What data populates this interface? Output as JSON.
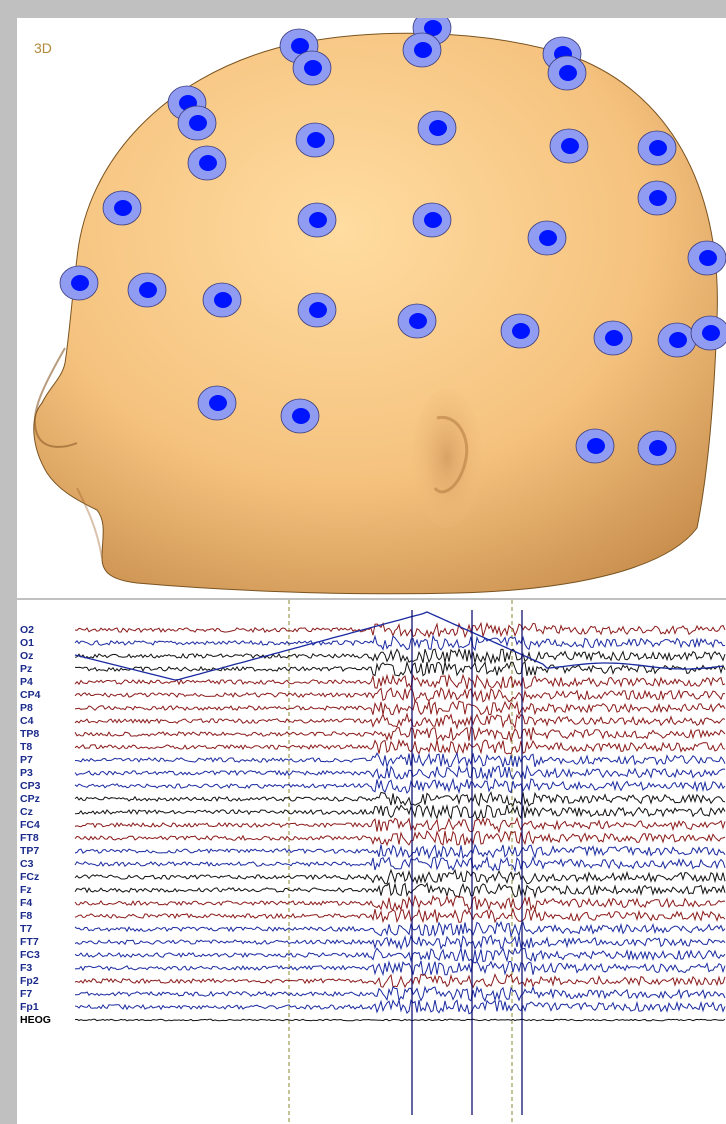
{
  "view3d": {
    "label": "3D"
  },
  "colors": {
    "skin": "#f5c27e",
    "electrode_ring": "#8f9cf2",
    "electrode_dot": "#0014ff",
    "trace_red": "#8b1a1a",
    "trace_black": "#111111",
    "trace_blue": "#1a2aa0",
    "label_blue": "#1a2a8a",
    "marker": "#8a8a2a"
  },
  "channels": [
    {
      "name": "O2",
      "color": "red"
    },
    {
      "name": "O1",
      "color": "blue"
    },
    {
      "name": "Oz",
      "color": "black"
    },
    {
      "name": "Pz",
      "color": "black"
    },
    {
      "name": "P4",
      "color": "red"
    },
    {
      "name": "CP4",
      "color": "red"
    },
    {
      "name": "P8",
      "color": "red"
    },
    {
      "name": "C4",
      "color": "red"
    },
    {
      "name": "TP8",
      "color": "red"
    },
    {
      "name": "T8",
      "color": "red"
    },
    {
      "name": "P7",
      "color": "blue"
    },
    {
      "name": "P3",
      "color": "blue"
    },
    {
      "name": "CP3",
      "color": "blue"
    },
    {
      "name": "CPz",
      "color": "black"
    },
    {
      "name": "Cz",
      "color": "black"
    },
    {
      "name": "FC4",
      "color": "red"
    },
    {
      "name": "FT8",
      "color": "red"
    },
    {
      "name": "TP7",
      "color": "blue"
    },
    {
      "name": "C3",
      "color": "blue"
    },
    {
      "name": "FCz",
      "color": "black"
    },
    {
      "name": "Fz",
      "color": "black"
    },
    {
      "name": "F4",
      "color": "red"
    },
    {
      "name": "F8",
      "color": "red"
    },
    {
      "name": "T7",
      "color": "blue"
    },
    {
      "name": "FT7",
      "color": "blue"
    },
    {
      "name": "FC3",
      "color": "blue"
    },
    {
      "name": "F3",
      "color": "blue"
    },
    {
      "name": "Fp2",
      "color": "red"
    },
    {
      "name": "F7",
      "color": "blue"
    },
    {
      "name": "Fp1",
      "color": "blue"
    },
    {
      "name": "HEOG",
      "color": "black"
    }
  ]
}
